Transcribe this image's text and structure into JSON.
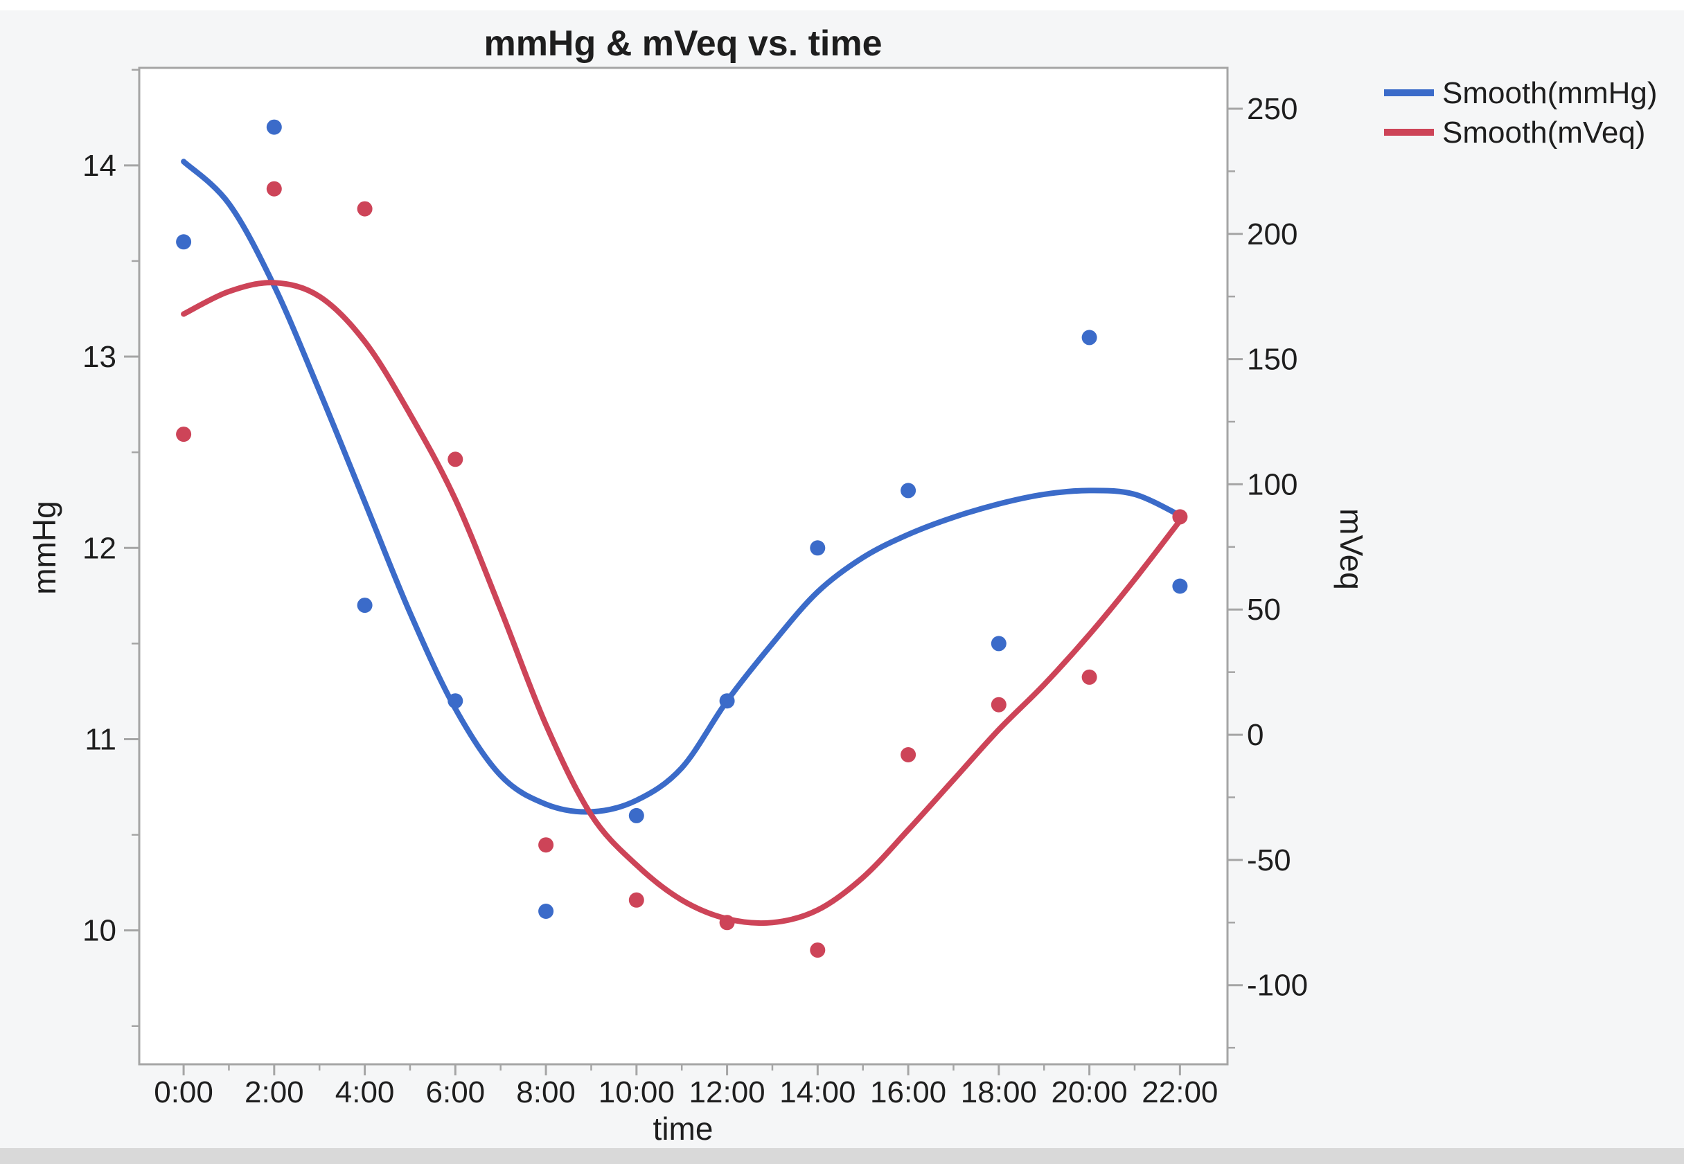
{
  "window": {
    "panel_bg": "#F5F6F7",
    "top_margin_bg": "#FFFFFF",
    "bottom_strip_bg": "#D9D9D9"
  },
  "colors": {
    "blue": "#3B6BC9",
    "red": "#CD4458",
    "frame": "#A5A5A5",
    "text": "#1E1E1E",
    "plot_bg": "#FFFFFF"
  },
  "chart_data": {
    "type": "scatter",
    "title": "mmHg & mVeq vs. time",
    "x_categories": [
      "0:00",
      "2:00",
      "4:00",
      "6:00",
      "8:00",
      "10:00",
      "12:00",
      "14:00",
      "16:00",
      "18:00",
      "20:00",
      "22:00"
    ],
    "x_hours": [
      0,
      2,
      4,
      6,
      8,
      10,
      12,
      14,
      16,
      18,
      20,
      22
    ],
    "series": [
      {
        "name": "mmHg",
        "legend": "Smooth(mmHg)",
        "axis": "left",
        "color": "#3B6BC9",
        "marker_values": [
          13.6,
          14.2,
          11.7,
          11.2,
          10.1,
          10.6,
          11.2,
          12.0,
          12.3,
          11.5,
          13.1,
          11.8
        ]
      },
      {
        "name": "mVeq",
        "legend": "Smooth(mVeq)",
        "axis": "right",
        "color": "#CD4458",
        "marker_values": [
          120,
          218,
          210,
          110,
          -44,
          -66,
          -75,
          -86,
          -8,
          12,
          23,
          87
        ]
      }
    ],
    "smooth_curves": [
      {
        "series": "mmHg",
        "axis": "left",
        "color": "#3B6BC9",
        "points": [
          [
            0,
            14.02
          ],
          [
            1,
            13.8
          ],
          [
            2,
            13.37
          ],
          [
            3,
            12.82
          ],
          [
            4,
            12.24
          ],
          [
            5,
            11.66
          ],
          [
            6,
            11.16
          ],
          [
            7,
            10.81
          ],
          [
            8,
            10.66
          ],
          [
            9,
            10.62
          ],
          [
            10,
            10.68
          ],
          [
            11,
            10.85
          ],
          [
            12,
            11.2
          ],
          [
            13,
            11.5
          ],
          [
            14,
            11.77
          ],
          [
            15,
            11.95
          ],
          [
            16,
            12.07
          ],
          [
            17,
            12.16
          ],
          [
            18,
            12.23
          ],
          [
            19,
            12.28
          ],
          [
            20,
            12.3
          ],
          [
            21,
            12.28
          ],
          [
            22,
            12.17
          ]
        ]
      },
      {
        "series": "mVeq",
        "axis": "right",
        "color": "#CD4458",
        "points": [
          [
            0,
            168
          ],
          [
            1,
            177
          ],
          [
            2,
            180.5
          ],
          [
            3,
            175
          ],
          [
            4,
            157
          ],
          [
            5,
            128
          ],
          [
            6,
            94
          ],
          [
            7,
            50
          ],
          [
            8,
            4
          ],
          [
            9,
            -32
          ],
          [
            10,
            -52
          ],
          [
            11,
            -66
          ],
          [
            12,
            -73.5
          ],
          [
            13,
            -75
          ],
          [
            14,
            -70
          ],
          [
            15,
            -57
          ],
          [
            16,
            -38
          ],
          [
            17,
            -18
          ],
          [
            18,
            2
          ],
          [
            19,
            20
          ],
          [
            20,
            40
          ],
          [
            21,
            62
          ],
          [
            22,
            85.5
          ]
        ]
      }
    ],
    "axes": {
      "x": {
        "label": "time",
        "range_hours": [
          -0.98,
          23.05
        ],
        "major_tick_hours": [
          0,
          2,
          4,
          6,
          8,
          10,
          12,
          14,
          16,
          18,
          20,
          22
        ],
        "minor_tick_hours": [
          1,
          3,
          5,
          7,
          9,
          11,
          13,
          15,
          17,
          19,
          21
        ]
      },
      "left": {
        "label": "mmHg",
        "range": [
          9.3,
          14.51
        ],
        "major_ticks": [
          14,
          13,
          12,
          11,
          10
        ],
        "minor_ticks": [
          14.5,
          13.5,
          12.5,
          11.5,
          10.5,
          9.5
        ]
      },
      "right": {
        "label": "mVeq",
        "range": [
          -131.6,
          266.3
        ],
        "major_ticks": [
          250,
          200,
          150,
          100,
          50,
          0,
          -50,
          -100
        ],
        "minor_ticks": [
          225,
          175,
          125,
          75,
          25,
          -25,
          -75,
          -125
        ]
      }
    },
    "legend_position": "top-right",
    "grid": false
  }
}
